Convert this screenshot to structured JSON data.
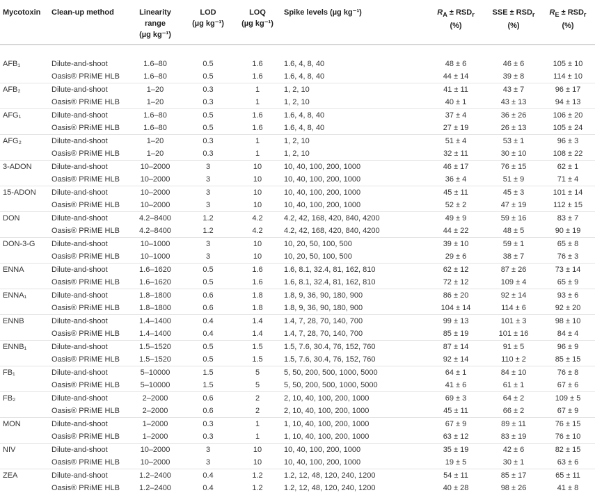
{
  "headers": {
    "mycotoxin": "Mycotoxin",
    "cleanup": "Clean-up method",
    "linearity_1": "Linearity",
    "linearity_2": "range",
    "linearity_3": "(µg kg⁻¹)",
    "lod_1": "LOD",
    "lod_2": "(µg kg⁻¹)",
    "loq_1": "LOQ",
    "loq_2": "(µg kg⁻¹)",
    "spike": "Spike levels (µg kg⁻¹)",
    "ra_1": "R",
    "ra_sub": "A",
    "ra_rest": " ± RSD",
    "ra_sub2": "r",
    "ra_2": "(%)",
    "sse_1": "SSE ± RSD",
    "sse_sub": "r",
    "sse_2": "(%)",
    "re_1": "R",
    "re_sub": "E",
    "re_rest": " ± RSD",
    "re_sub2": "r",
    "re_2": "(%)"
  },
  "rows": [
    {
      "toxin": "AFB₁",
      "method": "Dilute-and-shoot",
      "lin": "1.6–80",
      "lod": "0.5",
      "loq": "1.6",
      "spike": "1.6, 4, 8, 40",
      "ra": "48 ± 6",
      "sse": "46 ± 6",
      "re": "105 ± 10"
    },
    {
      "toxin": "",
      "method": "Oasis® PRiME HLB",
      "lin": "1.6–80",
      "lod": "0.5",
      "loq": "1.6",
      "spike": "1.6, 4, 8, 40",
      "ra": "44 ± 14",
      "sse": "39 ± 8",
      "re": "114 ± 10"
    },
    {
      "toxin": "AFB₂",
      "method": "Dilute-and-shoot",
      "lin": "1–20",
      "lod": "0.3",
      "loq": "1",
      "spike": "1, 2, 10",
      "ra": "41 ± 11",
      "sse": "43 ± 7",
      "re": "96 ± 17"
    },
    {
      "toxin": "",
      "method": "Oasis® PRiME HLB",
      "lin": "1–20",
      "lod": "0.3",
      "loq": "1",
      "spike": "1, 2, 10",
      "ra": "40 ± 1",
      "sse": "43 ± 13",
      "re": "94 ± 13"
    },
    {
      "toxin": "AFG₁",
      "method": "Dilute-and-shoot",
      "lin": "1.6–80",
      "lod": "0.5",
      "loq": "1.6",
      "spike": "1.6, 4, 8, 40",
      "ra": "37 ± 4",
      "sse": "36 ± 26",
      "re": "106 ± 20"
    },
    {
      "toxin": "",
      "method": "Oasis® PRiME HLB",
      "lin": "1.6–80",
      "lod": "0.5",
      "loq": "1.6",
      "spike": "1.6, 4, 8, 40",
      "ra": "27 ± 19",
      "sse": "26 ± 13",
      "re": "105 ± 24"
    },
    {
      "toxin": "AFG₂",
      "method": "Dilute-and-shoot",
      "lin": "1–20",
      "lod": "0.3",
      "loq": "1",
      "spike": "1, 2, 10",
      "ra": "51 ± 4",
      "sse": "53 ± 1",
      "re": "96 ± 3"
    },
    {
      "toxin": "",
      "method": "Oasis® PRiME HLB",
      "lin": "1–20",
      "lod": "0.3",
      "loq": "1",
      "spike": "1, 2, 10",
      "ra": "32 ± 11",
      "sse": "30 ± 10",
      "re": "108 ± 22"
    },
    {
      "toxin": "3-ADON",
      "method": "Dilute-and-shoot",
      "lin": "10–2000",
      "lod": "3",
      "loq": "10",
      "spike": "10, 40, 100, 200, 1000",
      "ra": "46 ± 17",
      "sse": "76 ± 15",
      "re": "62 ± 1"
    },
    {
      "toxin": "",
      "method": "Oasis® PRiME HLB",
      "lin": "10–2000",
      "lod": "3",
      "loq": "10",
      "spike": "10, 40, 100, 200, 1000",
      "ra": "36 ± 4",
      "sse": "51 ± 9",
      "re": "71 ± 4"
    },
    {
      "toxin": "15-ADON",
      "method": "Dilute-and-shoot",
      "lin": "10–2000",
      "lod": "3",
      "loq": "10",
      "spike": "10, 40, 100, 200, 1000",
      "ra": "45 ± 11",
      "sse": "45 ± 3",
      "re": "101 ± 14"
    },
    {
      "toxin": "",
      "method": "Oasis® PRiME HLB",
      "lin": "10–2000",
      "lod": "3",
      "loq": "10",
      "spike": "10, 40, 100, 200, 1000",
      "ra": "52 ± 2",
      "sse": "47 ± 19",
      "re": "112 ± 15"
    },
    {
      "toxin": "DON",
      "method": "Dilute-and-shoot",
      "lin": "4.2–8400",
      "lod": "1.2",
      "loq": "4.2",
      "spike": "4.2, 42, 168, 420, 840, 4200",
      "ra": "49 ± 9",
      "sse": "59 ± 16",
      "re": "83 ± 7"
    },
    {
      "toxin": "",
      "method": "Oasis® PRiME HLB",
      "lin": "4.2–8400",
      "lod": "1.2",
      "loq": "4.2",
      "spike": "4.2, 42, 168, 420, 840, 4200",
      "ra": "44 ± 22",
      "sse": "48 ± 5",
      "re": "90 ± 19"
    },
    {
      "toxin": "DON-3-G",
      "method": "Dilute-and-shoot",
      "lin": "10–1000",
      "lod": "3",
      "loq": "10",
      "spike": "10, 20, 50, 100, 500",
      "ra": "39 ± 10",
      "sse": "59 ± 1",
      "re": "65 ± 8"
    },
    {
      "toxin": "",
      "method": "Oasis® PRiME HLB",
      "lin": "10–1000",
      "lod": "3",
      "loq": "10",
      "spike": "10, 20, 50, 100, 500",
      "ra": "29 ± 6",
      "sse": "38 ± 7",
      "re": "76 ± 3"
    },
    {
      "toxin": "ENNA",
      "method": "Dilute-and-shoot",
      "lin": "1.6–1620",
      "lod": "0.5",
      "loq": "1.6",
      "spike": "1.6, 8.1, 32.4, 81, 162, 810",
      "ra": "62 ± 12",
      "sse": "87 ± 26",
      "re": "73 ± 14"
    },
    {
      "toxin": "",
      "method": "Oasis® PRiME HLB",
      "lin": "1.6–1620",
      "lod": "0.5",
      "loq": "1.6",
      "spike": "1.6, 8.1, 32.4, 81, 162, 810",
      "ra": "72 ± 12",
      "sse": "109 ± 4",
      "re": "65 ± 9"
    },
    {
      "toxin": "ENNA₁",
      "method": "Dilute-and-shoot",
      "lin": "1.8–1800",
      "lod": "0.6",
      "loq": "1.8",
      "spike": "1.8, 9, 36, 90, 180, 900",
      "ra": "86 ± 20",
      "sse": "92 ± 14",
      "re": "93 ± 6"
    },
    {
      "toxin": "",
      "method": "Oasis® PRiME HLB",
      "lin": "1.8–1800",
      "lod": "0.6",
      "loq": "1.8",
      "spike": "1.8, 9, 36, 90, 180, 900",
      "ra": "104 ± 14",
      "sse": "114 ± 6",
      "re": "92 ± 20"
    },
    {
      "toxin": "ENNB",
      "method": "Dilute-and-shoot",
      "lin": "1.4–1400",
      "lod": "0.4",
      "loq": "1.4",
      "spike": "1.4, 7, 28, 70, 140, 700",
      "ra": "99 ± 13",
      "sse": "101 ± 3",
      "re": "98 ± 10"
    },
    {
      "toxin": "",
      "method": "Oasis® PRiME HLB",
      "lin": "1.4–1400",
      "lod": "0.4",
      "loq": "1.4",
      "spike": "1.4, 7, 28, 70, 140, 700",
      "ra": "85 ± 19",
      "sse": "101 ± 16",
      "re": "84 ± 4"
    },
    {
      "toxin": "ENNB₁",
      "method": "Dilute-and-shoot",
      "lin": "1.5–1520",
      "lod": "0.5",
      "loq": "1.5",
      "spike": "1.5, 7.6, 30.4, 76, 152, 760",
      "ra": "87 ± 14",
      "sse": "91 ± 5",
      "re": "96 ± 9"
    },
    {
      "toxin": "",
      "method": "Oasis® PRiME HLB",
      "lin": "1.5–1520",
      "lod": "0.5",
      "loq": "1.5",
      "spike": "1.5, 7.6, 30.4, 76, 152, 760",
      "ra": "92 ± 14",
      "sse": "110 ± 2",
      "re": "85 ± 15"
    },
    {
      "toxin": "FB₁",
      "method": "Dilute-and-shoot",
      "lin": "5–10000",
      "lod": "1.5",
      "loq": "5",
      "spike": "5, 50, 200, 500, 1000, 5000",
      "ra": "64 ± 1",
      "sse": "84 ± 10",
      "re": "76 ± 8"
    },
    {
      "toxin": "",
      "method": "Oasis® PRiME HLB",
      "lin": "5–10000",
      "lod": "1.5",
      "loq": "5",
      "spike": "5, 50, 200, 500, 1000, 5000",
      "ra": "41 ± 6",
      "sse": "61 ± 1",
      "re": "67 ± 6"
    },
    {
      "toxin": "FB₂",
      "method": "Dilute-and-shoot",
      "lin": "2–2000",
      "lod": "0.6",
      "loq": "2",
      "spike": "2, 10, 40, 100, 200, 1000",
      "ra": "69 ± 3",
      "sse": "64 ± 2",
      "re": "109 ± 5"
    },
    {
      "toxin": "",
      "method": "Oasis® PRiME HLB",
      "lin": "2–2000",
      "lod": "0.6",
      "loq": "2",
      "spike": "2, 10, 40, 100, 200, 1000",
      "ra": "45 ± 11",
      "sse": "66 ± 2",
      "re": "67 ± 9"
    },
    {
      "toxin": "MON",
      "method": "Dilute-and-shoot",
      "lin": "1–2000",
      "lod": "0.3",
      "loq": "1",
      "spike": "1, 10, 40, 100, 200, 1000",
      "ra": "67 ± 9",
      "sse": "89 ± 11",
      "re": "76 ± 15"
    },
    {
      "toxin": "",
      "method": "Oasis® PRiME HLB",
      "lin": "1–2000",
      "lod": "0.3",
      "loq": "1",
      "spike": "1, 10, 40, 100, 200, 1000",
      "ra": "63 ± 12",
      "sse": "83 ± 19",
      "re": "76 ± 10"
    },
    {
      "toxin": "NIV",
      "method": "Dilute-and-shoot",
      "lin": "10–2000",
      "lod": "3",
      "loq": "10",
      "spike": "10, 40, 100, 200, 1000",
      "ra": "35 ± 19",
      "sse": "42 ± 6",
      "re": "82 ± 15"
    },
    {
      "toxin": "",
      "method": "Oasis® PRiME HLB",
      "lin": "10–2000",
      "lod": "3",
      "loq": "10",
      "spike": "10, 40, 100, 200, 1000",
      "ra": "19 ± 5",
      "sse": "30 ± 1",
      "re": "63 ± 6"
    },
    {
      "toxin": "ZEA",
      "method": "Dilute-and-shoot",
      "lin": "1.2–2400",
      "lod": "0.4",
      "loq": "1.2",
      "spike": "1.2, 12, 48, 120, 240, 1200",
      "ra": "54 ± 11",
      "sse": "85 ± 17",
      "re": "65 ± 11"
    },
    {
      "toxin": "",
      "method": "Oasis® PRiME HLB",
      "lin": "1.2–2400",
      "lod": "0.4",
      "loq": "1.2",
      "spike": "1.2, 12, 48, 120, 240, 1200",
      "ra": "40 ± 28",
      "sse": "98 ± 26",
      "re": "41 ± 8"
    }
  ]
}
